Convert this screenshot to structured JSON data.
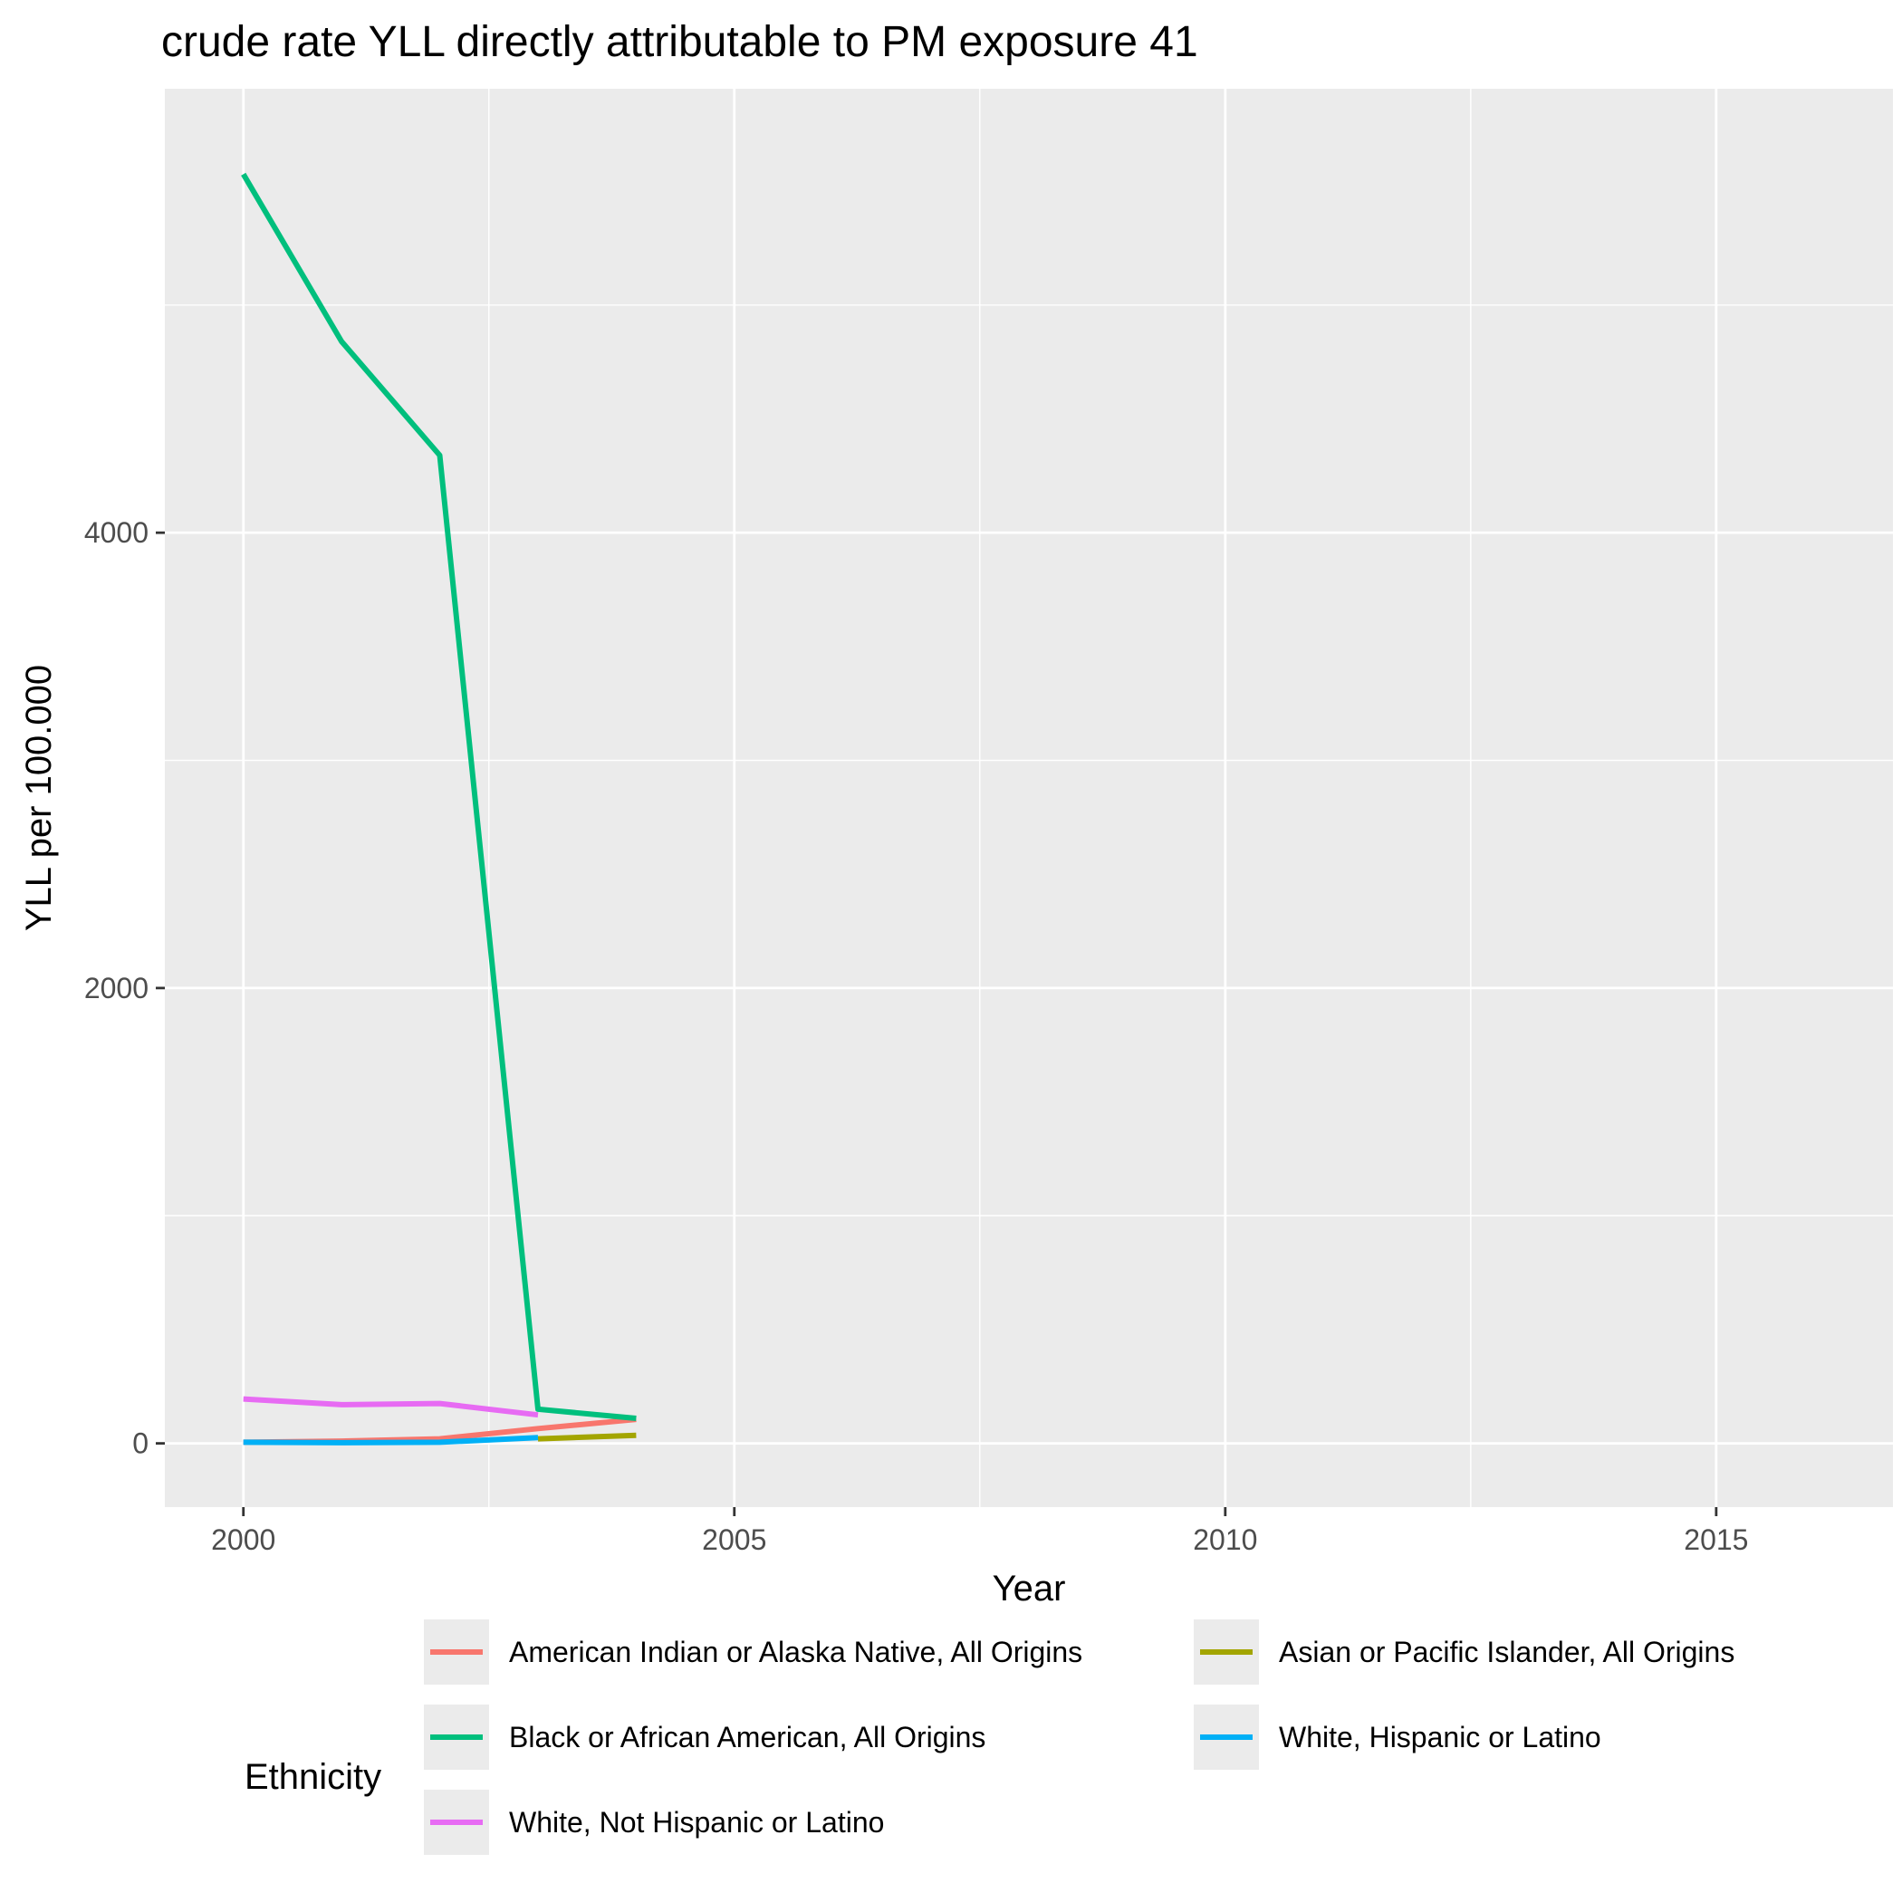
{
  "chart_data": {
    "type": "line",
    "title": "crude rate YLL directly attributable to PM exposure 41",
    "xlabel": "Year",
    "ylabel": "YLL per 100.000",
    "xlim": [
      1999.2,
      2016.8
    ],
    "ylim": [
      -280,
      5950
    ],
    "x_ticks": [
      2000,
      2005,
      2010,
      2015
    ],
    "y_ticks": [
      0,
      2000,
      4000
    ],
    "grid": true,
    "legend": {
      "title": "Ethnicity",
      "position": "bottom"
    },
    "series": [
      {
        "name": "American Indian or Alaska Native, All Origins",
        "color": "#F8766D",
        "x": [
          2000,
          2001,
          2002,
          2003,
          2004
        ],
        "y": [
          5,
          10,
          20,
          65,
          105
        ]
      },
      {
        "name": "Asian or Pacific Islander, All Origins",
        "color": "#A3A500",
        "x": [
          2003,
          2004
        ],
        "y": [
          20,
          35
        ]
      },
      {
        "name": "Black or African American, All Origins",
        "color": "#00BF7D",
        "x": [
          2000,
          2001,
          2002,
          2003,
          2004
        ],
        "y": [
          5575,
          4840,
          4340,
          150,
          110
        ]
      },
      {
        "name": "White, Hispanic or Latino",
        "color": "#00B0F6",
        "x": [
          2000,
          2001,
          2002,
          2003
        ],
        "y": [
          5,
          3,
          5,
          25
        ]
      },
      {
        "name": "White, Not Hispanic or Latino",
        "color": "#E76BF3",
        "x": [
          2000,
          2001,
          2002,
          2003
        ],
        "y": [
          195,
          170,
          175,
          125
        ]
      }
    ]
  }
}
